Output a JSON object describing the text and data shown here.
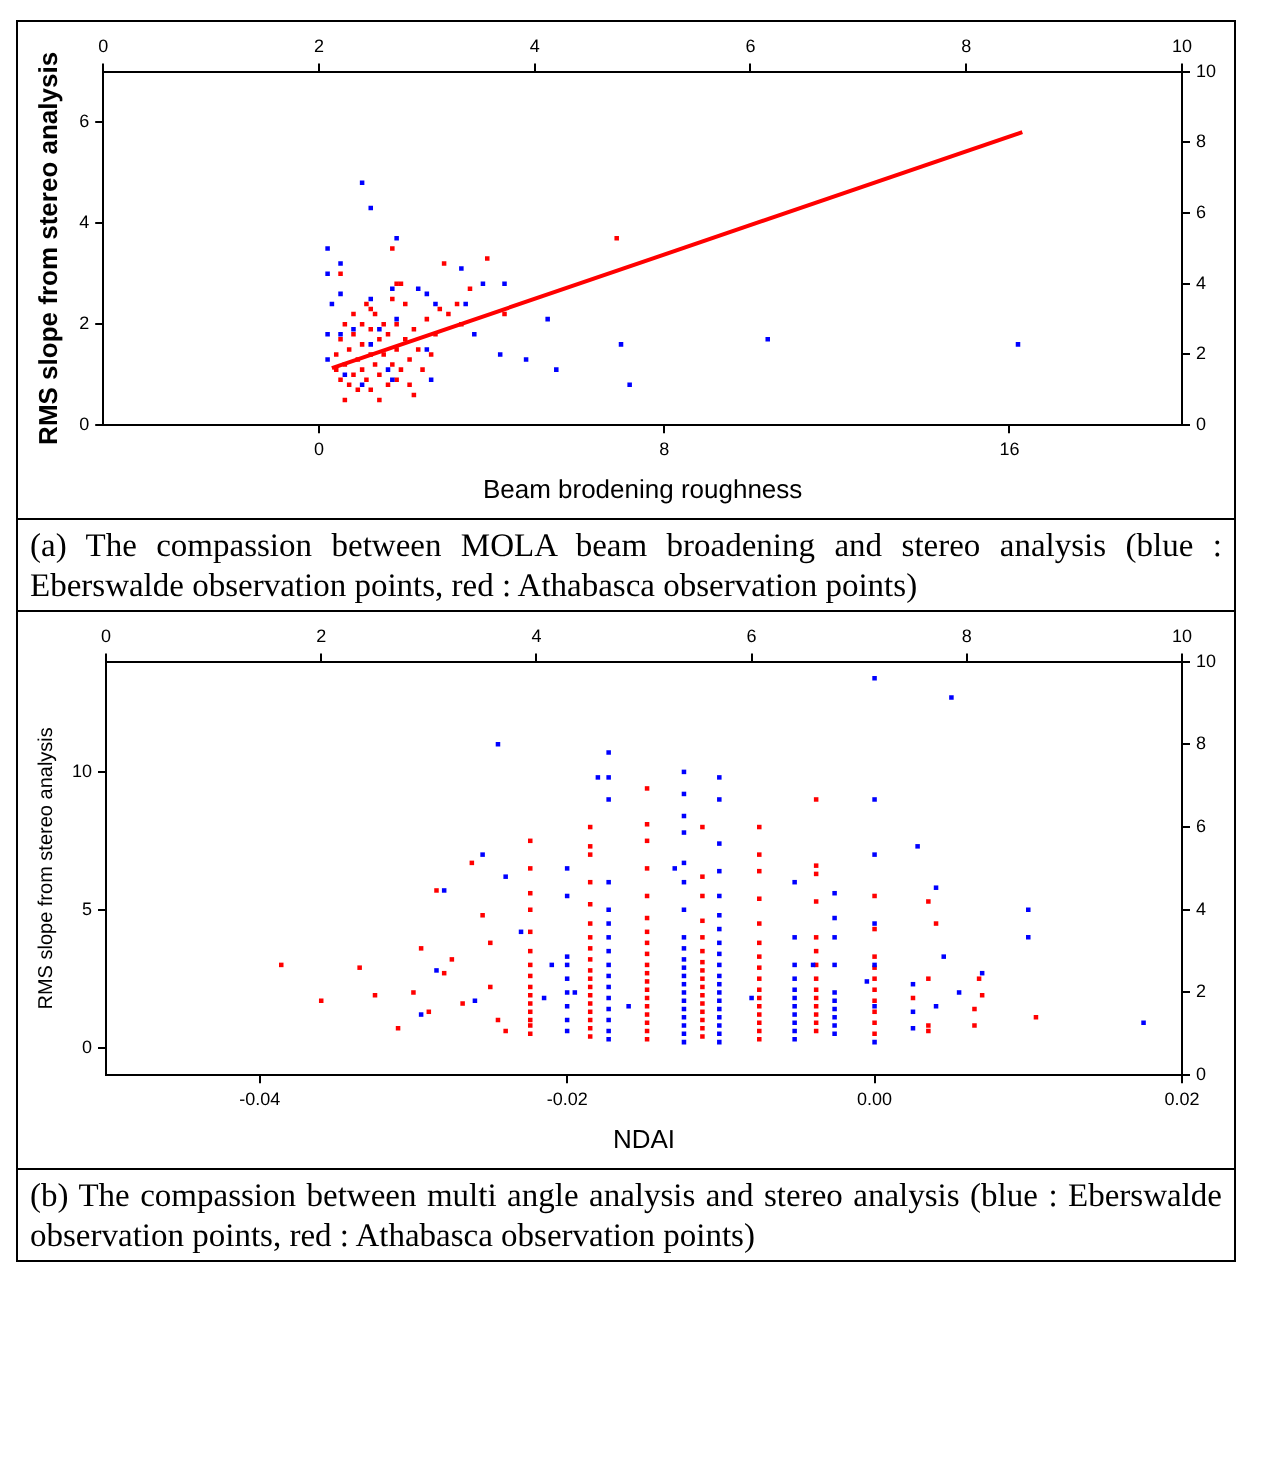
{
  "chart_data": [
    {
      "type": "scatter",
      "xlabel": "Beam brodening roughness",
      "ylabel": "RMS slope from stereo analysis",
      "xlim": [
        -5,
        20
      ],
      "xticks": [
        0,
        8,
        16
      ],
      "ylim": [
        0,
        7
      ],
      "yticks": [
        0,
        2,
        4,
        6
      ],
      "x2lim": [
        0,
        10
      ],
      "x2ticks": [
        0,
        2,
        4,
        6,
        8,
        10
      ],
      "y2lim": [
        0,
        10
      ],
      "y2ticks": [
        0,
        2,
        4,
        6,
        8,
        10
      ],
      "grid": false,
      "legend": false,
      "marker": "square",
      "annotations": [
        "(a) The compassion between MOLA beam broadening and stereo analysis (blue : Eberswalde observation points, red : Athabasca observation points)"
      ],
      "series": [
        {
          "type": "scatter",
          "color": "#0000ff",
          "x": [
            1.0,
            1.2,
            1.8,
            0.2,
            0.5,
            0.2,
            3.3,
            3.8,
            4.3,
            1.7,
            2.3,
            0.5,
            2.5,
            0.3,
            2.7,
            3.4,
            1.2,
            5.3,
            1.8,
            0.2,
            3.6,
            10.4,
            16.2,
            7.0,
            4.2,
            4.8,
            5.5,
            7.2,
            2.6,
            1.0,
            2.5,
            0.2,
            0.5,
            0.8,
            1.4,
            0.6,
            1.6,
            1.2,
            1.7
          ],
          "values": [
            4.8,
            4.3,
            3.7,
            3.5,
            3.2,
            3.0,
            3.1,
            2.8,
            2.8,
            2.7,
            2.7,
            2.6,
            2.6,
            2.4,
            2.4,
            2.4,
            2.5,
            2.1,
            2.1,
            1.8,
            1.8,
            1.7,
            1.6,
            1.6,
            1.4,
            1.3,
            1.1,
            0.8,
            0.9,
            0.8,
            1.5,
            1.3,
            1.8,
            1.9,
            1.9,
            1.0,
            1.1,
            1.6,
            0.9
          ]
        },
        {
          "type": "scatter",
          "color": "#ff0000",
          "x": [
            0.4,
            0.4,
            0.5,
            0.5,
            0.6,
            0.6,
            0.6,
            0.7,
            0.7,
            0.8,
            0.8,
            0.8,
            0.9,
            0.9,
            1.0,
            1.0,
            1.0,
            1.1,
            1.1,
            1.2,
            1.2,
            1.2,
            1.3,
            1.3,
            1.4,
            1.4,
            1.4,
            1.5,
            1.5,
            1.6,
            1.6,
            1.7,
            1.7,
            1.8,
            1.8,
            1.8,
            1.9,
            2.0,
            2.0,
            2.1,
            2.1,
            2.2,
            2.2,
            2.3,
            2.4,
            2.5,
            2.6,
            2.7,
            2.8,
            3.0,
            3.2,
            3.3,
            1.9,
            1.2,
            0.5,
            1.7,
            2.9,
            3.9,
            3.5,
            4.3,
            6.9,
            1.8
          ],
          "values": [
            1.1,
            1.4,
            1.7,
            0.9,
            0.5,
            1.2,
            2.0,
            1.5,
            0.8,
            2.2,
            1.0,
            1.8,
            1.3,
            0.7,
            1.6,
            2.0,
            1.1,
            2.4,
            0.9,
            1.4,
            1.9,
            0.7,
            1.2,
            2.2,
            1.7,
            1.0,
            0.5,
            2.0,
            1.4,
            0.8,
            1.8,
            2.5,
            1.2,
            1.5,
            2.0,
            0.9,
            1.1,
            1.7,
            2.4,
            1.3,
            0.8,
            1.9,
            0.6,
            1.5,
            1.1,
            2.1,
            1.4,
            1.8,
            2.3,
            2.2,
            2.4,
            2.0,
            2.8,
            2.3,
            3.0,
            3.5,
            3.2,
            3.3,
            2.7,
            2.2,
            3.7,
            2.8
          ]
        },
        {
          "type": "line",
          "color": "#ff0000",
          "marker": "none",
          "line_style": "solid",
          "x": [
            0.3,
            16.3
          ],
          "values": [
            1.13,
            5.8
          ]
        }
      ]
    },
    {
      "type": "scatter",
      "xlabel": "NDAI",
      "ylabel": "RMS slope from stereo analysis",
      "xlim": [
        -0.05,
        0.02
      ],
      "xticks": [
        {
          "value": -0.04,
          "label": "-0.04"
        },
        {
          "value": -0.02,
          "label": "-0.02"
        },
        {
          "value": 0,
          "label": "0.00"
        },
        {
          "value": 0.02,
          "label": "0.02"
        }
      ],
      "ylim": [
        -1,
        14
      ],
      "yticks": [
        0,
        5,
        10
      ],
      "x2lim": [
        0,
        10
      ],
      "x2ticks": [
        0,
        2,
        4,
        6,
        8,
        10
      ],
      "y2lim": [
        0,
        10
      ],
      "y2ticks": [
        0,
        2,
        4,
        6,
        8,
        10
      ],
      "grid": false,
      "legend": false,
      "marker": "square",
      "annotations": [
        "(b) The compassion between multi angle analysis and stereo analysis (blue : Eberswalde observation points, red : Athabasca observation points)"
      ],
      "series": [
        {
          "type": "scatter",
          "color": "#0000ff",
          "x": [
            -0.02,
            -0.02,
            -0.02,
            -0.02,
            -0.02,
            -0.02,
            -0.02,
            -0.02,
            -0.02,
            -0.0173,
            -0.0173,
            -0.0173,
            -0.0173,
            -0.0173,
            -0.0173,
            -0.0173,
            -0.0173,
            -0.0173,
            -0.0173,
            -0.0173,
            -0.0173,
            -0.0173,
            -0.0173,
            -0.0173,
            -0.0173,
            -0.0124,
            -0.0124,
            -0.0124,
            -0.0124,
            -0.0124,
            -0.0124,
            -0.0124,
            -0.0124,
            -0.0124,
            -0.0124,
            -0.0124,
            -0.0124,
            -0.0124,
            -0.0124,
            -0.0124,
            -0.0124,
            -0.0124,
            -0.0124,
            -0.0124,
            -0.0124,
            -0.0101,
            -0.0101,
            -0.0101,
            -0.0101,
            -0.0101,
            -0.0101,
            -0.0101,
            -0.0101,
            -0.0101,
            -0.0101,
            -0.0101,
            -0.0101,
            -0.0101,
            -0.0101,
            -0.0101,
            -0.0101,
            -0.0101,
            -0.0101,
            -0.0101,
            -0.0052,
            -0.0052,
            -0.0052,
            -0.0052,
            -0.0052,
            -0.0052,
            -0.0052,
            -0.0052,
            -0.0052,
            -0.0052,
            -0.0052,
            -0.0026,
            -0.0026,
            -0.0026,
            -0.0026,
            -0.0026,
            -0.0026,
            -0.0026,
            -0.0026,
            -0.0026,
            -0.0026,
            0.0,
            0.0,
            0.0,
            0.0,
            0.0,
            0.0,
            0.0,
            -0.0295,
            -0.0285,
            -0.028,
            -0.026,
            -0.0255,
            -0.0245,
            -0.024,
            -0.023,
            -0.0215,
            -0.021,
            -0.0195,
            -0.018,
            -0.016,
            -0.013,
            -0.008,
            -0.004,
            0.0025,
            0.0025,
            0.0025,
            0.0028,
            0.004,
            0.0045,
            0.004,
            0.0055,
            0.007,
            0.005,
            0.01,
            0.01,
            0.0175,
            -0.0005
          ],
          "values": [
            0.6,
            1.0,
            1.5,
            2.0,
            2.5,
            3.0,
            3.3,
            5.5,
            6.5,
            0.3,
            0.6,
            1.0,
            1.4,
            1.8,
            2.2,
            2.6,
            3.0,
            3.5,
            4.0,
            4.5,
            5.0,
            6.0,
            9.0,
            9.8,
            10.7,
            0.2,
            0.5,
            0.8,
            1.1,
            1.4,
            1.7,
            2.0,
            2.3,
            2.6,
            2.9,
            3.2,
            3.6,
            4.0,
            5.0,
            6.0,
            6.7,
            7.8,
            8.4,
            9.2,
            10.0,
            0.2,
            0.5,
            0.8,
            1.1,
            1.4,
            1.7,
            2.0,
            2.3,
            2.6,
            3.0,
            3.4,
            3.8,
            4.3,
            4.8,
            5.5,
            6.4,
            7.4,
            9.0,
            9.8,
            0.3,
            0.6,
            0.9,
            1.2,
            1.5,
            1.8,
            2.1,
            2.5,
            3.0,
            4.0,
            6.0,
            0.5,
            0.8,
            1.1,
            1.4,
            1.7,
            2.0,
            3.0,
            4.0,
            4.7,
            5.6,
            0.2,
            1.5,
            3.0,
            4.5,
            7.0,
            9.0,
            13.4,
            1.2,
            2.8,
            5.7,
            1.7,
            7.0,
            11.0,
            6.2,
            4.2,
            1.8,
            3.0,
            2.0,
            9.8,
            1.5,
            6.5,
            1.8,
            3.0,
            2.3,
            1.3,
            0.7,
            7.3,
            5.8,
            3.3,
            1.5,
            2.0,
            2.7,
            12.7,
            5.0,
            4.0,
            0.9,
            2.4
          ]
        },
        {
          "type": "scatter",
          "color": "#ff0000",
          "x": [
            -0.0224,
            -0.0224,
            -0.0224,
            -0.0224,
            -0.0224,
            -0.0224,
            -0.0224,
            -0.0224,
            -0.0224,
            -0.0224,
            -0.0224,
            -0.0224,
            -0.0224,
            -0.0224,
            -0.0224,
            -0.0185,
            -0.0185,
            -0.0185,
            -0.0185,
            -0.0185,
            -0.0185,
            -0.0185,
            -0.0185,
            -0.0185,
            -0.0185,
            -0.0185,
            -0.0185,
            -0.0185,
            -0.0185,
            -0.0185,
            -0.0185,
            -0.0185,
            -0.0185,
            -0.0148,
            -0.0148,
            -0.0148,
            -0.0148,
            -0.0148,
            -0.0148,
            -0.0148,
            -0.0148,
            -0.0148,
            -0.0148,
            -0.0148,
            -0.0148,
            -0.0148,
            -0.0148,
            -0.0148,
            -0.0148,
            -0.0148,
            -0.0148,
            -0.0148,
            -0.0112,
            -0.0112,
            -0.0112,
            -0.0112,
            -0.0112,
            -0.0112,
            -0.0112,
            -0.0112,
            -0.0112,
            -0.0112,
            -0.0112,
            -0.0112,
            -0.0112,
            -0.0112,
            -0.0112,
            -0.0112,
            -0.0075,
            -0.0075,
            -0.0075,
            -0.0075,
            -0.0075,
            -0.0075,
            -0.0075,
            -0.0075,
            -0.0075,
            -0.0075,
            -0.0075,
            -0.0075,
            -0.0075,
            -0.0075,
            -0.0075,
            -0.0075,
            -0.0038,
            -0.0038,
            -0.0038,
            -0.0038,
            -0.0038,
            -0.0038,
            -0.0038,
            -0.0038,
            -0.0038,
            -0.0038,
            -0.0038,
            -0.0038,
            -0.0038,
            -0.0038,
            0.0,
            0.0,
            0.0,
            0.0,
            0.0,
            0.0,
            0.0,
            0.0,
            0.0,
            0.0,
            -0.0386,
            -0.036,
            -0.0335,
            -0.0325,
            -0.031,
            -0.03,
            -0.0295,
            -0.029,
            -0.0285,
            -0.028,
            -0.0275,
            -0.0268,
            -0.0262,
            -0.0255,
            -0.025,
            -0.0245,
            -0.024,
            -0.025,
            0.0035,
            0.0035,
            0.0035,
            0.0035,
            0.004,
            0.0068,
            0.0065,
            0.0065,
            0.007,
            0.0105,
            0.0025
          ],
          "values": [
            0.5,
            0.8,
            1.0,
            1.3,
            1.6,
            1.9,
            2.2,
            2.6,
            3.0,
            3.5,
            4.2,
            5.0,
            5.6,
            6.5,
            7.5,
            0.4,
            0.7,
            1.0,
            1.3,
            1.6,
            1.9,
            2.2,
            2.5,
            2.8,
            3.2,
            3.6,
            4.0,
            4.5,
            5.2,
            6.0,
            7.0,
            7.3,
            8.0,
            0.3,
            0.6,
            0.9,
            1.2,
            1.5,
            1.8,
            2.1,
            2.4,
            2.7,
            3.0,
            3.4,
            3.8,
            4.2,
            4.7,
            5.5,
            6.5,
            7.5,
            8.1,
            9.4,
            0.4,
            0.7,
            1.0,
            1.3,
            1.6,
            1.9,
            2.2,
            2.5,
            2.8,
            3.1,
            3.5,
            4.0,
            4.6,
            5.5,
            6.2,
            8.0,
            0.3,
            0.6,
            0.9,
            1.2,
            1.5,
            1.8,
            2.1,
            2.5,
            2.9,
            3.3,
            3.8,
            4.5,
            5.4,
            6.4,
            7.0,
            8.0,
            0.6,
            0.9,
            1.2,
            1.5,
            1.8,
            2.1,
            2.5,
            3.0,
            3.5,
            4.0,
            5.3,
            6.3,
            6.6,
            9.0,
            0.5,
            0.9,
            1.3,
            1.7,
            2.1,
            2.5,
            2.9,
            3.3,
            4.3,
            5.5,
            3.0,
            1.7,
            2.9,
            1.9,
            0.7,
            2.0,
            3.6,
            1.3,
            5.7,
            2.7,
            3.2,
            1.6,
            6.7,
            4.8,
            2.2,
            1.0,
            0.6,
            3.8,
            5.3,
            2.5,
            0.8,
            0.6,
            4.5,
            2.5,
            1.4,
            0.8,
            1.9,
            1.1,
            1.8
          ]
        }
      ]
    }
  ]
}
